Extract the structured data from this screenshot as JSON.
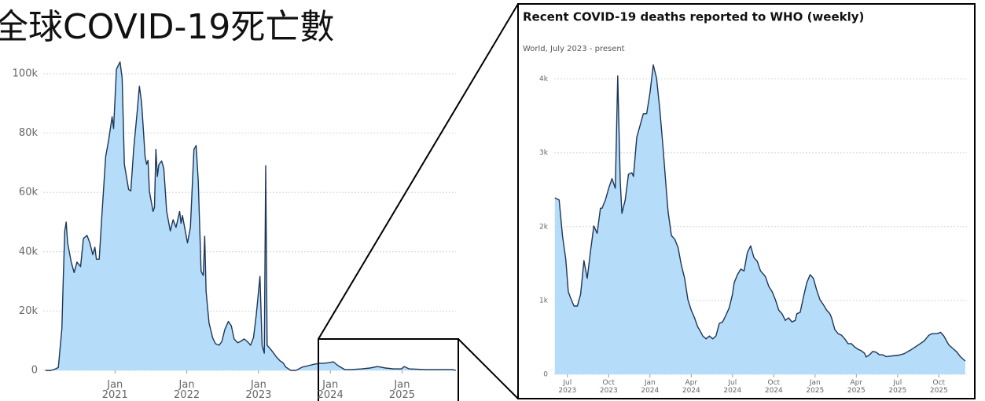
{
  "chart_data": [
    {
      "type": "area",
      "title": "全球COVID-19死亡數",
      "color": "#1d3557",
      "area_color": "#b5dcf8",
      "grid": true,
      "xlim": [
        2020,
        2025.8
      ],
      "ylim": [
        0,
        100000
      ],
      "xticks": [
        {
          "value": 2021,
          "label": "Jan 2021"
        },
        {
          "value": 2022,
          "label": "Jan 2022"
        },
        {
          "value": 2023,
          "label": "Jan 2023"
        },
        {
          "value": 2024,
          "label": "Jan 2024"
        },
        {
          "value": 2025,
          "label": "Jan 2025"
        }
      ],
      "yticks": [
        0,
        {
          "value": 20000,
          "label": "20k"
        },
        {
          "value": 40000,
          "label": "40k"
        },
        {
          "value": 60000,
          "label": "60k"
        },
        {
          "value": 80000,
          "label": "80k"
        },
        {
          "value": 100000,
          "label": "100k"
        }
      ],
      "x": [
        2020.03,
        2020.11,
        2020.17,
        2020.21,
        2020.26,
        2020.28,
        2020.3,
        2020.32,
        2020.34,
        2020.39,
        2020.43,
        2020.47,
        2020.52,
        2020.56,
        2020.61,
        2020.65,
        2020.69,
        2020.72,
        2020.74,
        2020.78,
        2020.82,
        2020.87,
        2020.91,
        2020.96,
        2020.98,
        2021.02,
        2021.07,
        2021.1,
        2021.13,
        2021.19,
        2021.22,
        2021.26,
        2021.31,
        2021.34,
        2021.37,
        2021.42,
        2021.44,
        2021.46,
        2021.48,
        2021.53,
        2021.55,
        2021.57,
        2021.59,
        2021.61,
        2021.65,
        2021.68,
        2021.72,
        2021.77,
        2021.81,
        2021.85,
        2021.9,
        2021.92,
        2021.94,
        2021.96,
        2022.01,
        2022.05,
        2022.1,
        2022.13,
        2022.16,
        2022.2,
        2022.23,
        2022.25,
        2022.27,
        2022.31,
        2022.36,
        2022.4,
        2022.45,
        2022.49,
        2022.53,
        2022.58,
        2022.62,
        2022.66,
        2022.71,
        2022.75,
        2022.8,
        2022.84,
        2022.89,
        2022.93,
        2022.97,
        2023.02,
        2023.05,
        2023.08,
        2023.1,
        2023.12,
        2023.17,
        2023.21,
        2023.25,
        2023.3,
        2023.34,
        2023.38,
        2023.45,
        2023.52,
        2023.61,
        2023.69,
        2023.78,
        2023.85,
        2023.91,
        2023.98,
        2024.04,
        2024.11,
        2024.2,
        2024.29,
        2024.44,
        2024.55,
        2024.66,
        2024.77,
        2024.88,
        2024.99,
        2025.03,
        2025.1,
        2025.32,
        2025.54,
        2025.7,
        2025.75
      ],
      "values": [
        0,
        0,
        500,
        1000,
        14000,
        32000,
        47000,
        50000,
        43000,
        36500,
        33000,
        36500,
        35000,
        44500,
        45500,
        43000,
        39000,
        41500,
        37500,
        37500,
        53500,
        72000,
        77500,
        85500,
        81500,
        101500,
        104000,
        98500,
        69500,
        61000,
        60500,
        74500,
        87500,
        95800,
        90400,
        72000,
        69500,
        70800,
        60300,
        53600,
        55000,
        74500,
        65400,
        69300,
        70600,
        68000,
        53600,
        47000,
        50800,
        48200,
        53600,
        49600,
        52200,
        49600,
        43000,
        48200,
        74500,
        75800,
        63800,
        33400,
        32000,
        45200,
        26500,
        16000,
        11000,
        9000,
        8500,
        9800,
        13800,
        16500,
        15100,
        10600,
        9300,
        9800,
        10600,
        9800,
        8500,
        11100,
        19000,
        31700,
        8500,
        5800,
        69000,
        8500,
        7100,
        5800,
        4500,
        3200,
        2600,
        1100,
        0,
        0,
        1100,
        1600,
        2100,
        2400,
        2400,
        2600,
        2900,
        1600,
        300,
        300,
        500,
        800,
        1300,
        800,
        500,
        500,
        1300,
        500,
        300,
        300,
        300,
        0
      ]
    },
    {
      "type": "area",
      "title": "Recent COVID-19 deaths reported to WHO (weekly)",
      "subtitle": "World, July 2023 - present",
      "color": "#1d3557",
      "area_color": "#b5dcf8",
      "grid": true,
      "xlim": [
        2023.42,
        2025.92
      ],
      "ylim": [
        0,
        4000
      ],
      "xticks": [
        {
          "value": 2023.5,
          "label": "Jul 2023"
        },
        {
          "value": 2023.75,
          "label": "Oct 2023"
        },
        {
          "value": 2024,
          "label": "Jan 2024"
        },
        {
          "value": 2024.25,
          "label": "Apr 2024"
        },
        {
          "value": 2024.5,
          "label": "Jul 2024"
        },
        {
          "value": 2024.75,
          "label": "Oct 2024"
        },
        {
          "value": 2025,
          "label": "Jan 2025"
        },
        {
          "value": 2025.25,
          "label": "Apr 2025"
        },
        {
          "value": 2025.5,
          "label": "Jul 2025"
        },
        {
          "value": 2025.75,
          "label": "Oct 2025"
        }
      ],
      "yticks": [
        0,
        {
          "value": 1000,
          "label": "1k"
        },
        {
          "value": 2000,
          "label": "2k"
        },
        {
          "value": 3000,
          "label": "3k"
        },
        {
          "value": 4000,
          "label": "4k"
        }
      ],
      "x": [
        2023.424,
        2023.45,
        2023.47,
        2023.49,
        2023.505,
        2023.52,
        2023.54,
        2023.56,
        2023.58,
        2023.6,
        2023.62,
        2023.64,
        2023.66,
        2023.68,
        2023.7,
        2023.71,
        2023.73,
        2023.75,
        2023.77,
        2023.79,
        2023.805,
        2023.82,
        2023.83,
        2023.85,
        2023.87,
        2023.89,
        2023.9,
        2023.92,
        2023.94,
        2023.96,
        2023.98,
        2024.0,
        2024.02,
        2024.04,
        2024.06,
        2024.08,
        2024.1,
        2024.11,
        2024.13,
        2024.15,
        2024.17,
        2024.19,
        2024.21,
        2024.23,
        2024.25,
        2024.27,
        2024.29,
        2024.3,
        2024.32,
        2024.34,
        2024.36,
        2024.38,
        2024.4,
        2024.42,
        2024.44,
        2024.46,
        2024.48,
        2024.5,
        2024.51,
        2024.53,
        2024.55,
        2024.57,
        2024.59,
        2024.61,
        2024.63,
        2024.65,
        2024.67,
        2024.69,
        2024.7,
        2024.72,
        2024.74,
        2024.76,
        2024.78,
        2024.8,
        2024.82,
        2024.84,
        2024.86,
        2024.88,
        2024.89,
        2024.91,
        2024.93,
        2024.95,
        2024.97,
        2024.99,
        2025.01,
        2025.03,
        2025.05,
        2025.07,
        2025.09,
        2025.1,
        2025.12,
        2025.14,
        2025.16,
        2025.18,
        2025.2,
        2025.22,
        2025.24,
        2025.26,
        2025.28,
        2025.3,
        2025.31,
        2025.33,
        2025.35,
        2025.37,
        2025.39,
        2025.41,
        2025.43,
        2025.47,
        2025.51,
        2025.54,
        2025.58,
        2025.62,
        2025.66,
        2025.69,
        2025.71,
        2025.74,
        2025.76,
        2025.78,
        2025.81,
        2025.84,
        2025.86,
        2025.88,
        2025.91
      ],
      "values": [
        2390,
        2360,
        1880,
        1560,
        1120,
        1030,
        925,
        925,
        1085,
        1540,
        1300,
        1670,
        2010,
        1910,
        2250,
        2250,
        2360,
        2520,
        2650,
        2520,
        4040,
        2620,
        2180,
        2360,
        2710,
        2730,
        2680,
        3210,
        3370,
        3530,
        3530,
        3810,
        4190,
        4010,
        3580,
        3050,
        2470,
        2200,
        1880,
        1830,
        1720,
        1480,
        1300,
        1010,
        870,
        765,
        640,
        605,
        520,
        480,
        520,
        480,
        520,
        690,
        710,
        800,
        900,
        1085,
        1240,
        1350,
        1425,
        1400,
        1650,
        1740,
        1580,
        1530,
        1400,
        1350,
        1320,
        1190,
        1120,
        1010,
        870,
        820,
        730,
        765,
        710,
        730,
        820,
        840,
        1050,
        1240,
        1350,
        1300,
        1140,
        1010,
        945,
        870,
        820,
        765,
        605,
        550,
        530,
        480,
        415,
        415,
        370,
        340,
        320,
        285,
        235,
        265,
        310,
        300,
        265,
        265,
        240,
        250,
        260,
        280,
        330,
        390,
        450,
        530,
        550,
        550,
        570,
        520,
        400,
        340,
        300,
        240,
        180
      ]
    }
  ]
}
